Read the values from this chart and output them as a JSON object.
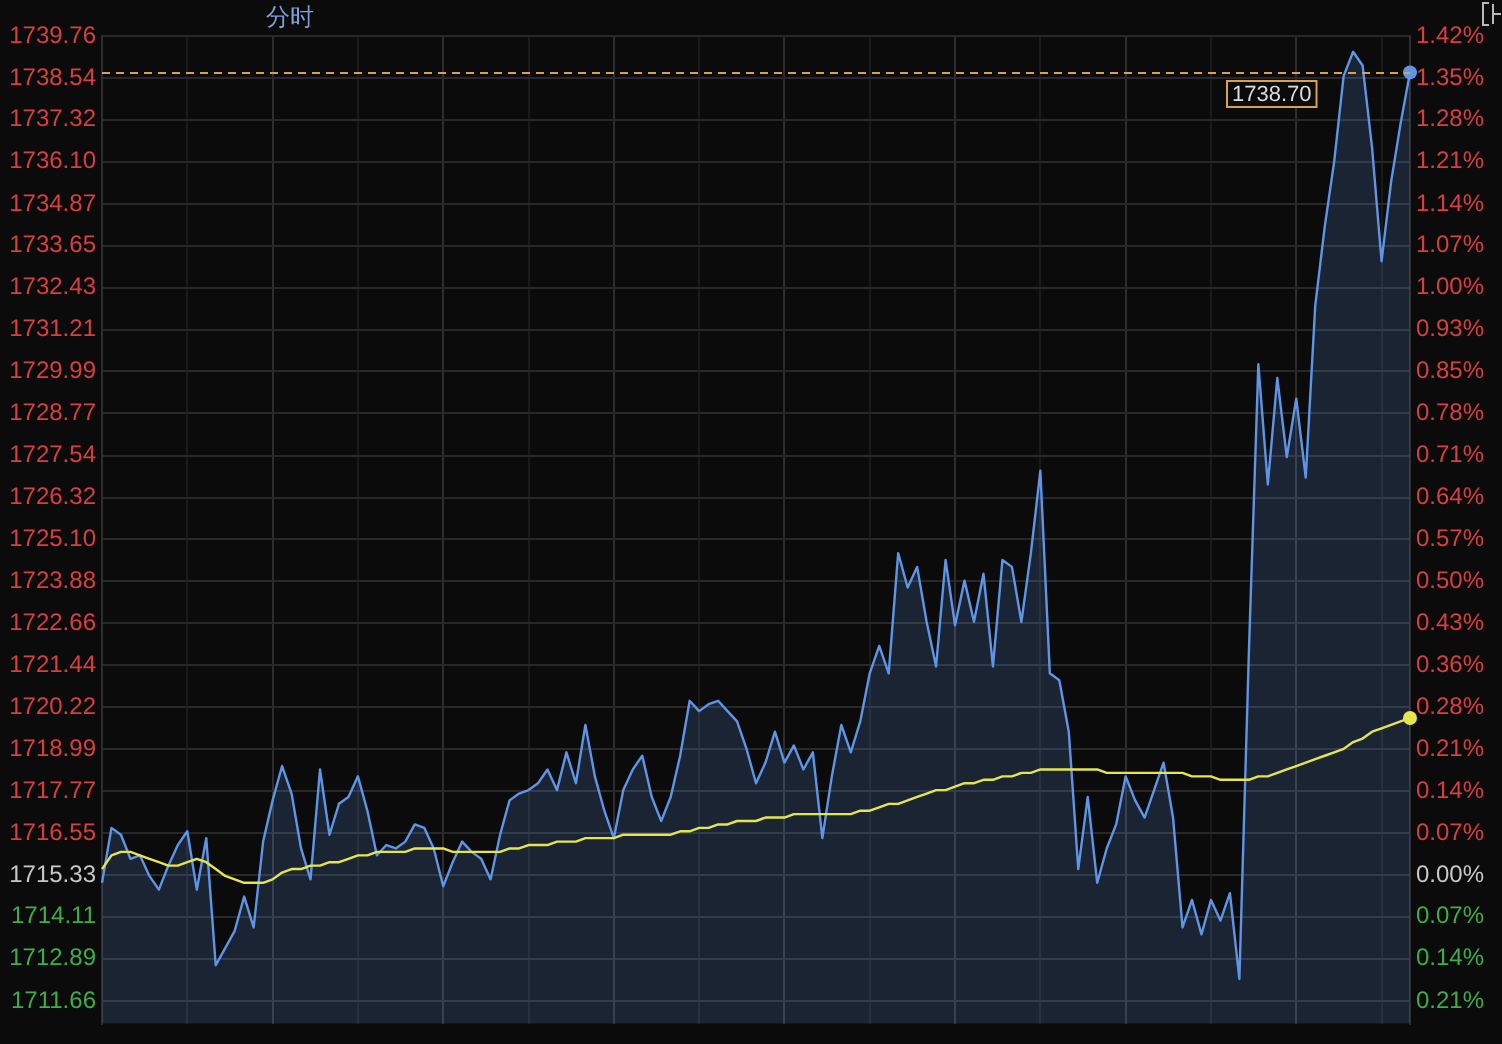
{
  "chart_data": {
    "type": "area",
    "title": "分时",
    "categories": [
      null,
      null,
      null,
      null,
      null,
      null,
      null,
      null,
      null,
      null,
      null,
      null,
      null,
      null,
      null,
      null,
      null,
      null,
      null,
      null,
      null,
      null,
      null,
      null,
      null,
      null,
      null,
      null,
      null,
      null,
      null,
      null,
      null,
      null,
      null,
      null,
      null,
      null,
      null,
      null,
      null,
      null,
      null,
      null,
      null,
      null,
      null,
      null,
      null,
      null,
      null,
      null,
      null,
      null,
      null,
      null,
      null,
      null,
      null,
      null,
      null,
      null,
      null,
      null,
      null,
      null,
      null,
      null,
      null,
      null,
      null,
      null,
      null,
      null,
      null,
      null,
      null,
      null,
      null,
      null,
      null,
      null,
      null,
      null,
      null,
      null,
      null,
      null,
      null,
      null,
      null,
      null,
      null,
      null,
      null,
      null,
      null,
      null,
      null,
      null,
      null,
      null,
      null,
      null,
      null,
      null,
      null,
      null,
      null,
      null,
      null,
      null,
      null,
      null,
      null,
      null,
      null,
      null,
      null,
      null,
      null,
      null,
      null,
      null,
      null,
      null,
      null,
      null,
      null,
      null,
      null,
      null,
      null,
      null,
      null,
      null,
      null,
      null,
      null
    ],
    "ylim": [
      1711,
      1739.76
    ],
    "yticks": [
      1739.76,
      1738.54,
      1737.32,
      {
        "value": 1736.1,
        "label": "1736.10"
      },
      1734.87,
      1733.65,
      1732.43,
      1731.21,
      1729.99,
      1728.77,
      1727.54,
      1726.32,
      {
        "value": 1725.1,
        "label": "1725.10"
      },
      1723.88,
      1722.66,
      1721.44,
      1720.22,
      1718.99,
      1717.77,
      1716.55,
      1715.33,
      1714.11,
      1712.89,
      1711.66
    ],
    "y2lim": [
      -0.2524,
      1.4242
    ],
    "y2ticks": [
      {
        "value": 1.424,
        "label": "1.42%"
      },
      {
        "value": 1.353,
        "label": "1.35%"
      },
      {
        "value": 1.282,
        "label": "1.28%"
      },
      {
        "value": 1.211,
        "label": "1.21%"
      },
      {
        "value": 1.139,
        "label": "1.14%"
      },
      {
        "value": 1.068,
        "label": "1.07%"
      },
      {
        "value": 0.997,
        "label": "1.00%"
      },
      {
        "value": 0.926,
        "label": "0.93%"
      },
      {
        "value": 0.855,
        "label": "0.85%"
      },
      {
        "value": 0.784,
        "label": "0.78%"
      },
      {
        "value": 0.712,
        "label": "0.71%"
      },
      {
        "value": 0.641,
        "label": "0.64%"
      },
      {
        "value": 0.57,
        "label": "0.57%"
      },
      {
        "value": 0.498,
        "label": "0.50%"
      },
      {
        "value": 0.427,
        "label": "0.43%"
      },
      {
        "value": 0.356,
        "label": "0.36%"
      },
      {
        "value": 0.285,
        "label": "0.28%"
      },
      {
        "value": 0.213,
        "label": "0.21%"
      },
      {
        "value": 0.142,
        "label": "0.14%"
      },
      {
        "value": 0.071,
        "label": "0.07%"
      },
      {
        "value": 0,
        "label": "0.00%"
      },
      {
        "value": -0.071,
        "label": "0.07%"
      },
      {
        "value": -0.142,
        "label": "0.14%"
      },
      {
        "value": -0.214,
        "label": "0.21%"
      }
    ],
    "grid": true,
    "ref_lines": [
      {
        "axis": "y",
        "value": 1738.7,
        "label": "1738.70",
        "color": "#d9a050",
        "line_style": "dashed"
      }
    ],
    "series": [
      {
        "type": "area",
        "color": "#5f95e6",
        "values": [
          1715.1,
          1716.7,
          1716.5,
          1715.8,
          1715.9,
          1715.3,
          1714.9,
          1715.6,
          1716.2,
          1716.6,
          1714.9,
          1716.4,
          1712.7,
          1713.2,
          1713.7,
          1714.7,
          1713.8,
          1716.3,
          1717.5,
          1718.5,
          1717.7,
          1716.1,
          1715.2,
          1718.4,
          1716.5,
          1717.4,
          1717.6,
          1718.2,
          1717.2,
          1715.9,
          1716.2,
          1716.1,
          1716.3,
          1716.8,
          1716.7,
          1716.1,
          1715.0,
          1715.7,
          1716.3,
          1716.0,
          1715.8,
          1715.2,
          1716.5,
          1717.5,
          1717.7,
          1717.8,
          1718.0,
          1718.4,
          1717.8,
          1718.9,
          1718.0,
          1719.7,
          1718.2,
          1717.2,
          1716.4,
          1717.8,
          1718.4,
          1718.8,
          1717.6,
          1716.9,
          1717.6,
          1718.8,
          1720.4,
          1720.1,
          1720.3,
          1720.4,
          1720.1,
          1719.8,
          1719.0,
          1718.0,
          1718.6,
          1719.5,
          1718.6,
          1719.1,
          1718.4,
          1718.9,
          1716.4,
          1718.2,
          1719.7,
          1718.9,
          1719.8,
          1721.2,
          1722.0,
          1721.2,
          1724.7,
          1723.7,
          1724.3,
          1722.7,
          1721.4,
          1724.5,
          1722.6,
          1723.9,
          1722.7,
          1724.1,
          1721.4,
          1724.5,
          1724.3,
          1722.7,
          1724.7,
          1727.1,
          1721.2,
          1721.0,
          1719.5,
          1715.5,
          1717.6,
          1715.1,
          1716.1,
          1716.8,
          1718.2,
          1717.5,
          1717.0,
          1717.8,
          1718.6,
          1717.0,
          1713.8,
          1714.6,
          1713.6,
          1714.6,
          1714.0,
          1714.8,
          1712.3,
          1721.8,
          1730.2,
          1726.7,
          1729.8,
          1727.5,
          1729.2,
          1726.9,
          1731.9,
          1734.2,
          1736.1,
          1738.6,
          1739.3,
          1738.9,
          1736.5,
          1733.2,
          1735.5,
          1737.2,
          1738.7
        ]
      },
      {
        "type": "line",
        "color": "#e6e64a",
        "values": [
          1715.5,
          1715.9,
          1716.0,
          1716.0,
          1715.9,
          1715.8,
          1715.7,
          1715.6,
          1715.6,
          1715.7,
          1715.8,
          1715.7,
          1715.5,
          1715.3,
          1715.2,
          1715.1,
          1715.1,
          1715.1,
          1715.2,
          1715.4,
          1715.5,
          1715.5,
          1715.6,
          1715.6,
          1715.7,
          1715.7,
          1715.8,
          1715.9,
          1715.9,
          1716.0,
          1716.0,
          1716.0,
          1716.0,
          1716.1,
          1716.1,
          1716.1,
          1716.1,
          1716.0,
          1716.0,
          1716.0,
          1716.0,
          1716.0,
          1716.0,
          1716.1,
          1716.1,
          1716.2,
          1716.2,
          1716.2,
          1716.3,
          1716.3,
          1716.3,
          1716.4,
          1716.4,
          1716.4,
          1716.4,
          1716.5,
          1716.5,
          1716.5,
          1716.5,
          1716.5,
          1716.5,
          1716.6,
          1716.6,
          1716.7,
          1716.7,
          1716.8,
          1716.8,
          1716.9,
          1716.9,
          1716.9,
          1717.0,
          1717.0,
          1717.0,
          1717.1,
          1717.1,
          1717.1,
          1717.1,
          1717.1,
          1717.1,
          1717.1,
          1717.2,
          1717.2,
          1717.3,
          1717.4,
          1717.4,
          1717.5,
          1717.6,
          1717.7,
          1717.8,
          1717.8,
          1717.9,
          1718.0,
          1718.0,
          1718.1,
          1718.1,
          1718.2,
          1718.2,
          1718.3,
          1718.3,
          1718.4,
          1718.4,
          1718.4,
          1718.4,
          1718.4,
          1718.4,
          1718.4,
          1718.3,
          1718.3,
          1718.3,
          1718.3,
          1718.3,
          1718.3,
          1718.3,
          1718.3,
          1718.3,
          1718.2,
          1718.2,
          1718.2,
          1718.1,
          1718.1,
          1718.1,
          1718.1,
          1718.2,
          1718.2,
          1718.3,
          1718.4,
          1718.5,
          1718.6,
          1718.7,
          1718.8,
          1718.9,
          1719.0,
          1719.2,
          1719.3,
          1719.5,
          1719.6,
          1719.7,
          1719.8,
          1719.9
        ]
      }
    ]
  }
}
